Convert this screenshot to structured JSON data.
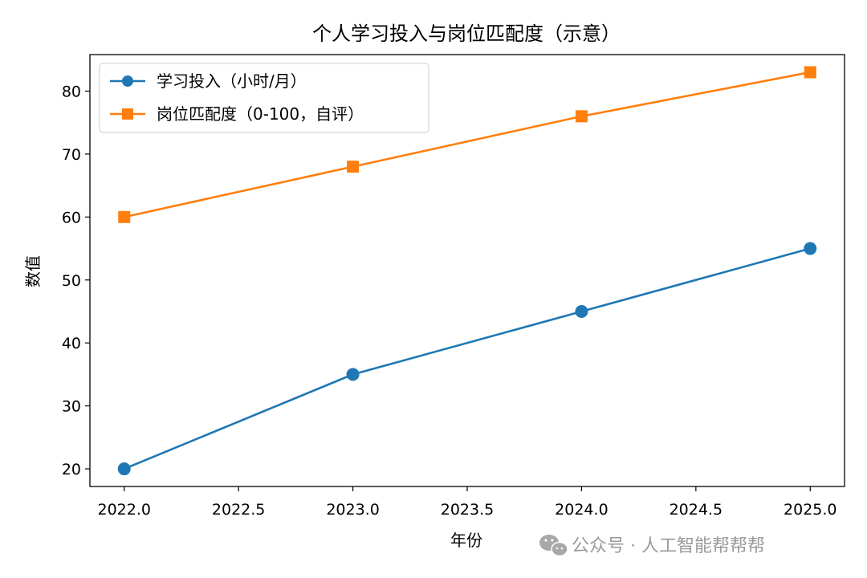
{
  "watermark": {
    "text": "公众号 · 人工智能帮帮帮",
    "icon": "wechat-icon"
  },
  "chart_data": {
    "type": "line",
    "title": "个人学习投入与岗位匹配度（示意）",
    "xlabel": "年份",
    "ylabel": "数值",
    "x": [
      2022,
      2023,
      2024,
      2025
    ],
    "xlim": [
      2021.85,
      2025.15
    ],
    "ylim": [
      17.2,
      85.8
    ],
    "xticks": [
      "2022.0",
      "2022.5",
      "2023.0",
      "2023.5",
      "2024.0",
      "2024.5",
      "2025.0"
    ],
    "yticks": [
      "20",
      "30",
      "40",
      "50",
      "60",
      "70",
      "80"
    ],
    "grid": false,
    "legend_position": "upper-left",
    "series": [
      {
        "name": "学习投入（小时/月）",
        "values": [
          20,
          35,
          45,
          55
        ],
        "color": "#1f77b4",
        "marker": "circle"
      },
      {
        "name": "岗位匹配度（0-100，自评）",
        "values": [
          60,
          68,
          76,
          83
        ],
        "color": "#ff7f0e",
        "marker": "square"
      }
    ]
  }
}
